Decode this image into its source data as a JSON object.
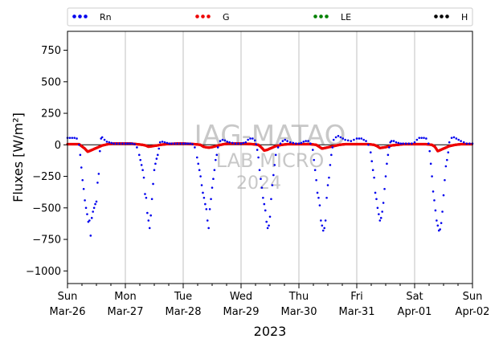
{
  "chart_data": {
    "type": "scatter",
    "xlabel": "2023",
    "ylabel": "Fluxes [W/m²]",
    "ylim": [
      -1100,
      900
    ],
    "xlim": [
      0,
      7
    ],
    "yticks": [
      -1000,
      -750,
      -500,
      -250,
      0,
      250,
      500,
      750
    ],
    "x_ticks": [
      {
        "day": "Sun",
        "date": "Mar-26"
      },
      {
        "day": "Mon",
        "date": "Mar-27"
      },
      {
        "day": "Tue",
        "date": "Mar-28"
      },
      {
        "day": "Wed",
        "date": "Mar-29"
      },
      {
        "day": "Thu",
        "date": "Mar-30"
      },
      {
        "day": "Fri",
        "date": "Mar-31"
      },
      {
        "day": "Sat",
        "date": "Apr-01"
      },
      {
        "day": "Sun",
        "date": "Apr-02"
      }
    ],
    "grid": "vertical",
    "zero_line": true,
    "legend": {
      "placement": "top",
      "entries": [
        {
          "name": "Rn",
          "color": "#0000ee"
        },
        {
          "name": "G",
          "color": "#ee0000"
        },
        {
          "name": "LE",
          "color": "#008000"
        },
        {
          "name": "H",
          "color": "#000000"
        }
      ]
    },
    "watermark": [
      "IAG-MATAO",
      "LAB MICRO",
      "2024"
    ],
    "series": [
      {
        "name": "Rn",
        "color": "#0000ee",
        "x": [
          0.0,
          0.04,
          0.08,
          0.12,
          0.16,
          0.2,
          0.22,
          0.24,
          0.26,
          0.28,
          0.3,
          0.32,
          0.34,
          0.36,
          0.38,
          0.4,
          0.42,
          0.44,
          0.46,
          0.48,
          0.5,
          0.52,
          0.54,
          0.56,
          0.58,
          0.6,
          0.64,
          0.68,
          0.72,
          0.76,
          0.8,
          0.85,
          0.9,
          0.95,
          1.0,
          1.04,
          1.08,
          1.12,
          1.16,
          1.2,
          1.24,
          1.26,
          1.28,
          1.3,
          1.32,
          1.34,
          1.36,
          1.38,
          1.4,
          1.42,
          1.44,
          1.46,
          1.48,
          1.5,
          1.52,
          1.54,
          1.56,
          1.58,
          1.6,
          1.64,
          1.68,
          1.72,
          1.76,
          1.8,
          1.85,
          1.9,
          1.95,
          2.0,
          2.04,
          2.08,
          2.12,
          2.16,
          2.2,
          2.24,
          2.26,
          2.28,
          2.3,
          2.32,
          2.34,
          2.36,
          2.38,
          2.4,
          2.42,
          2.44,
          2.46,
          2.48,
          2.5,
          2.52,
          2.54,
          2.56,
          2.58,
          2.6,
          2.64,
          2.68,
          2.72,
          2.76,
          2.8,
          2.85,
          2.9,
          2.95,
          3.0,
          3.04,
          3.08,
          3.12,
          3.16,
          3.2,
          3.24,
          3.26,
          3.28,
          3.3,
          3.32,
          3.34,
          3.36,
          3.38,
          3.4,
          3.42,
          3.44,
          3.46,
          3.48,
          3.5,
          3.52,
          3.54,
          3.56,
          3.58,
          3.6,
          3.64,
          3.68,
          3.72,
          3.76,
          3.8,
          3.85,
          3.9,
          3.95,
          4.0,
          4.04,
          4.08,
          4.12,
          4.16,
          4.2,
          4.24,
          4.26,
          4.28,
          4.3,
          4.32,
          4.34,
          4.36,
          4.38,
          4.4,
          4.42,
          4.44,
          4.46,
          4.48,
          4.5,
          4.52,
          4.54,
          4.56,
          4.58,
          4.6,
          4.64,
          4.68,
          4.72,
          4.76,
          4.8,
          4.85,
          4.9,
          4.95,
          5.0,
          5.04,
          5.08,
          5.12,
          5.16,
          5.2,
          5.24,
          5.26,
          5.28,
          5.3,
          5.32,
          5.34,
          5.36,
          5.38,
          5.4,
          5.42,
          5.44,
          5.46,
          5.48,
          5.5,
          5.52,
          5.54,
          5.56,
          5.58,
          5.6,
          5.64,
          5.68,
          5.72,
          5.76,
          5.8,
          5.85,
          5.9,
          5.95,
          6.0,
          6.04,
          6.08,
          6.12,
          6.16,
          6.2,
          6.24,
          6.26,
          6.28,
          6.3,
          6.32,
          6.34,
          6.36,
          6.38,
          6.4,
          6.42,
          6.44,
          6.46,
          6.48,
          6.5,
          6.52,
          6.54,
          6.56,
          6.58,
          6.6,
          6.64,
          6.68,
          6.72,
          6.76,
          6.8,
          6.85,
          6.9,
          6.95,
          7.0
        ],
        "y": [
          55,
          55,
          55,
          55,
          50,
          0,
          -80,
          -180,
          -280,
          -350,
          -440,
          -500,
          -550,
          -610,
          -600,
          -720,
          -580,
          -530,
          -500,
          -470,
          -450,
          -300,
          -230,
          -50,
          50,
          60,
          40,
          25,
          20,
          15,
          10,
          10,
          10,
          10,
          10,
          10,
          10,
          10,
          5,
          -20,
          -80,
          -120,
          -160,
          -200,
          -260,
          -390,
          -420,
          -540,
          -600,
          -660,
          -560,
          -430,
          -310,
          -200,
          -150,
          -110,
          -80,
          -30,
          20,
          25,
          20,
          15,
          10,
          10,
          10,
          10,
          10,
          10,
          10,
          10,
          10,
          5,
          -20,
          -100,
          -150,
          -200,
          -250,
          -320,
          -380,
          -420,
          -470,
          -510,
          -600,
          -660,
          -510,
          -430,
          -340,
          -270,
          -200,
          -120,
          -80,
          -20,
          30,
          40,
          35,
          25,
          20,
          15,
          10,
          10,
          10,
          15,
          20,
          40,
          50,
          50,
          35,
          5,
          -40,
          -100,
          -200,
          -270,
          -340,
          -420,
          -470,
          -520,
          -610,
          -660,
          -640,
          -570,
          -430,
          -320,
          -240,
          -160,
          -80,
          -20,
          10,
          30,
          40,
          30,
          20,
          15,
          10,
          10,
          15,
          25,
          30,
          30,
          10,
          -40,
          -120,
          -200,
          -280,
          -380,
          -420,
          -480,
          -600,
          -640,
          -680,
          -660,
          -600,
          -420,
          -320,
          -260,
          -160,
          -80,
          -20,
          40,
          60,
          70,
          60,
          50,
          40,
          35,
          30,
          40,
          50,
          50,
          50,
          40,
          30,
          0,
          -60,
          -130,
          -200,
          -260,
          -380,
          -430,
          -500,
          -550,
          -600,
          -580,
          -530,
          -460,
          -350,
          -250,
          -150,
          -80,
          -20,
          20,
          30,
          30,
          20,
          15,
          10,
          10,
          10,
          10,
          10,
          20,
          40,
          55,
          55,
          55,
          50,
          10,
          -50,
          -150,
          -250,
          -370,
          -440,
          -520,
          -600,
          -640,
          -680,
          -670,
          -620,
          -530,
          -400,
          -280,
          -170,
          -120,
          -60,
          20,
          55,
          60,
          50,
          40,
          30,
          20,
          10,
          10,
          10
        ]
      },
      {
        "name": "G",
        "color": "#ee0000",
        "x": [
          0.0,
          0.1,
          0.2,
          0.3,
          0.35,
          0.4,
          0.45,
          0.5,
          0.55,
          0.6,
          0.7,
          0.8,
          0.9,
          1.0,
          1.1,
          1.2,
          1.3,
          1.35,
          1.4,
          1.45,
          1.5,
          1.55,
          1.6,
          1.7,
          1.8,
          1.9,
          2.0,
          2.1,
          2.2,
          2.3,
          2.35,
          2.4,
          2.45,
          2.5,
          2.55,
          2.6,
          2.7,
          2.8,
          2.9,
          3.0,
          3.1,
          3.2,
          3.3,
          3.35,
          3.4,
          3.45,
          3.5,
          3.55,
          3.6,
          3.7,
          3.8,
          3.9,
          4.0,
          4.1,
          4.2,
          4.3,
          4.35,
          4.4,
          4.45,
          4.5,
          4.55,
          4.6,
          4.7,
          4.8,
          4.9,
          5.0,
          5.1,
          5.2,
          5.3,
          5.35,
          5.4,
          5.45,
          5.5,
          5.55,
          5.6,
          5.7,
          5.8,
          5.9,
          6.0,
          6.1,
          6.2,
          6.3,
          6.35,
          6.4,
          6.45,
          6.5,
          6.55,
          6.6,
          6.7,
          6.8,
          6.9,
          7.0
        ],
        "y": [
          5,
          5,
          5,
          -30,
          -55,
          -45,
          -35,
          -25,
          -15,
          -5,
          5,
          10,
          10,
          10,
          10,
          5,
          0,
          -5,
          -15,
          -12,
          -8,
          -5,
          0,
          5,
          8,
          10,
          10,
          8,
          5,
          0,
          -15,
          -20,
          -22,
          -18,
          -12,
          -5,
          5,
          10,
          10,
          10,
          8,
          5,
          0,
          -20,
          -45,
          -40,
          -30,
          -20,
          -10,
          0,
          5,
          5,
          5,
          5,
          5,
          0,
          -15,
          -30,
          -25,
          -20,
          -15,
          -10,
          0,
          5,
          5,
          5,
          5,
          5,
          0,
          -10,
          -25,
          -22,
          -18,
          -12,
          -5,
          0,
          5,
          5,
          5,
          5,
          5,
          0,
          -15,
          -50,
          -40,
          -30,
          -20,
          -10,
          0,
          5,
          5,
          5
        ]
      }
    ]
  }
}
